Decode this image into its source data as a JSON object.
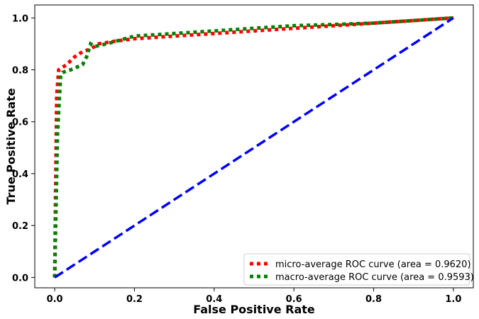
{
  "chart_data": {
    "type": "line",
    "title": "",
    "xlabel": "False Positive Rate",
    "ylabel": "True Positive Rate",
    "xlim": [
      -0.05,
      1.05
    ],
    "ylim": [
      -0.04,
      1.05
    ],
    "xticks": [
      0.0,
      0.2,
      0.4,
      0.6,
      0.8,
      1.0
    ],
    "yticks": [
      0.0,
      0.2,
      0.4,
      0.6,
      0.8,
      1.0
    ],
    "xtick_labels": [
      "0.0",
      "0.2",
      "0.4",
      "0.6",
      "0.8",
      "1.0"
    ],
    "ytick_labels": [
      "0.0",
      "0.2",
      "0.4",
      "0.6",
      "0.8",
      "1.0"
    ],
    "grid": false,
    "legend_position": "lower-right",
    "series": [
      {
        "name": "micro-average ROC curve (area = 0.9620)",
        "color": "#ff0000",
        "style": "dotted",
        "x": [
          0.0,
          0.002,
          0.005,
          0.01,
          0.03,
          0.05,
          0.07,
          0.09,
          0.11,
          0.15,
          0.2,
          0.3,
          0.4,
          0.5,
          0.6,
          0.7,
          0.8,
          0.9,
          0.95,
          1.0
        ],
        "y": [
          0.0,
          0.3,
          0.7,
          0.8,
          0.82,
          0.85,
          0.87,
          0.88,
          0.9,
          0.91,
          0.92,
          0.93,
          0.94,
          0.95,
          0.96,
          0.97,
          0.98,
          0.99,
          0.995,
          1.0
        ]
      },
      {
        "name": "macro-average ROC curve (area = 0.9593)",
        "color": "#008000",
        "style": "dotted",
        "x": [
          0.0,
          0.003,
          0.007,
          0.015,
          0.02,
          0.04,
          0.07,
          0.08,
          0.09,
          0.1,
          0.13,
          0.2,
          0.3,
          0.4,
          0.5,
          0.6,
          0.7,
          0.8,
          0.9,
          1.0
        ],
        "y": [
          0.0,
          0.25,
          0.55,
          0.78,
          0.79,
          0.8,
          0.82,
          0.85,
          0.9,
          0.89,
          0.9,
          0.93,
          0.94,
          0.95,
          0.96,
          0.97,
          0.975,
          0.98,
          0.99,
          1.0
        ]
      },
      {
        "name": "",
        "color": "#0000ff",
        "style": "dashed",
        "x": [
          0.0,
          1.0
        ],
        "y": [
          0.0,
          1.0
        ]
      }
    ]
  }
}
